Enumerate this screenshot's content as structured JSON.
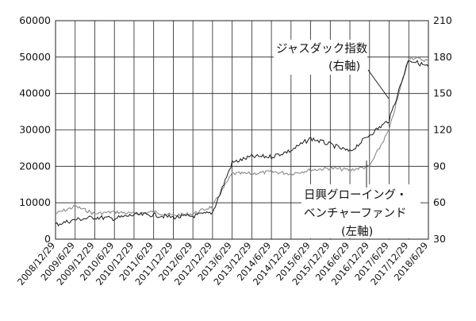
{
  "chart_data": {
    "type": "line",
    "title": "",
    "xlabel": "",
    "ylabel": "",
    "x_tick_labels": [
      "2008/12/29",
      "2009/6/29",
      "2009/12/29",
      "2010/6/29",
      "2010/12/29",
      "2011/6/29",
      "2011/12/29",
      "2012/6/29",
      "2012/12/29",
      "2013/6/29",
      "2013/12/29",
      "2014/6/29",
      "2014/12/29",
      "2015/6/29",
      "2015/12/29",
      "2016/6/29",
      "2016/12/29",
      "2017/6/29",
      "2017/12/29",
      "2018/6/29"
    ],
    "y_left": {
      "min": 0,
      "max": 60000,
      "ticks": [
        "0",
        "10000",
        "20000",
        "30000",
        "40000",
        "50000",
        "60000"
      ]
    },
    "y_right": {
      "min": 30,
      "max": 210,
      "ticks": [
        "30",
        "60",
        "90",
        "120",
        "150",
        "180",
        "210"
      ]
    },
    "grid": true,
    "series": [
      {
        "name": "日興グローイング・ベンチャーファンド(左軸)",
        "axis": "left",
        "color": "#8a8a8a",
        "x": [
          "2008/12/29",
          "2009/6/29",
          "2009/12/29",
          "2010/6/29",
          "2010/12/29",
          "2011/6/29",
          "2011/12/29",
          "2012/6/29",
          "2012/12/29",
          "2013/6/29",
          "2013/12/29",
          "2014/6/29",
          "2014/12/29",
          "2015/6/29",
          "2015/12/29",
          "2016/6/29",
          "2016/12/29",
          "2017/6/29",
          "2017/12/29",
          "2018/6/29"
        ],
        "y": [
          7000,
          9000,
          7000,
          7500,
          7000,
          7500,
          6500,
          7000,
          9000,
          18000,
          18000,
          18500,
          18000,
          19000,
          19500,
          19000,
          20000,
          30000,
          50000,
          49000
        ]
      },
      {
        "name": "ジャスダック指数(右軸)",
        "axis": "right",
        "color": "#1a1a1a",
        "x": [
          "2008/12/29",
          "2009/6/29",
          "2009/12/29",
          "2010/6/29",
          "2010/12/29",
          "2011/6/29",
          "2011/12/29",
          "2012/6/29",
          "2012/12/29",
          "2013/6/29",
          "2013/12/29",
          "2014/6/29",
          "2014/12/29",
          "2015/6/29",
          "2015/12/29",
          "2016/6/29",
          "2016/12/29",
          "2017/6/29",
          "2017/12/29",
          "2018/6/29"
        ],
        "y": [
          42,
          46,
          48,
          47,
          50,
          50,
          48,
          49,
          52,
          93,
          98,
          98,
          103,
          113,
          108,
          102,
          116,
          128,
          178,
          172
        ]
      }
    ],
    "annotations": {
      "jasdaq_name": "ジャスダック指数",
      "jasdaq_axis": "(右軸)",
      "fund_line1": "日興グローイング・",
      "fund_line2": "ベンチャーファンド",
      "fund_axis": "(左軸)"
    }
  }
}
